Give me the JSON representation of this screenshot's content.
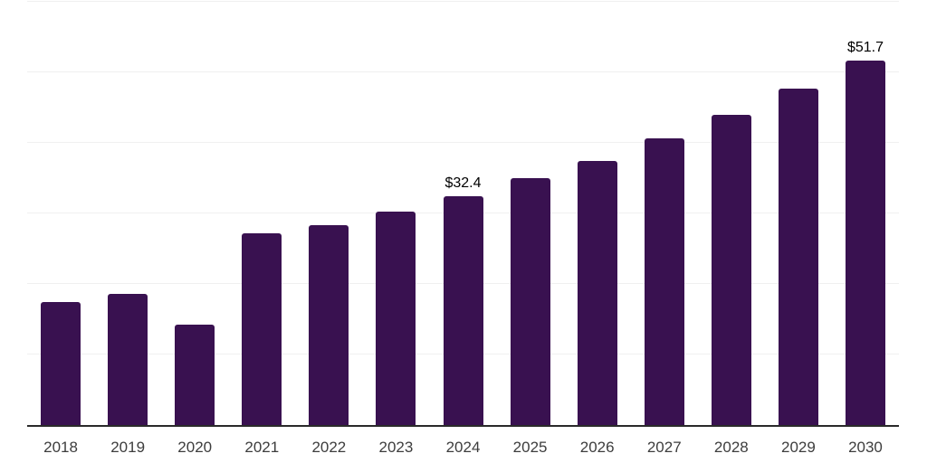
{
  "chart_data": {
    "type": "bar",
    "title": "",
    "categories": [
      "2018",
      "2019",
      "2020",
      "2021",
      "2022",
      "2023",
      "2024",
      "2025",
      "2026",
      "2027",
      "2028",
      "2029",
      "2030"
    ],
    "values": [
      17.4,
      18.6,
      14.2,
      27.2,
      28.3,
      30.3,
      32.4,
      35.0,
      37.4,
      40.6,
      44.0,
      47.7,
      51.7
    ],
    "data_labels": [
      "",
      "",
      "",
      "",
      "",
      "",
      "$32.4",
      "",
      "",
      "",
      "",
      "",
      "$51.7"
    ],
    "xlabel": "",
    "ylabel": "",
    "ylim": [
      0,
      60
    ],
    "gridline_step": 10,
    "grid": true,
    "legend_position": "none",
    "bar_color": "#391150",
    "gridline_color": "#f0f0f0",
    "axis_line_color": "#2a2a2a",
    "tick_label_color": "#3d3d3d",
    "data_label_color": "#000000"
  }
}
